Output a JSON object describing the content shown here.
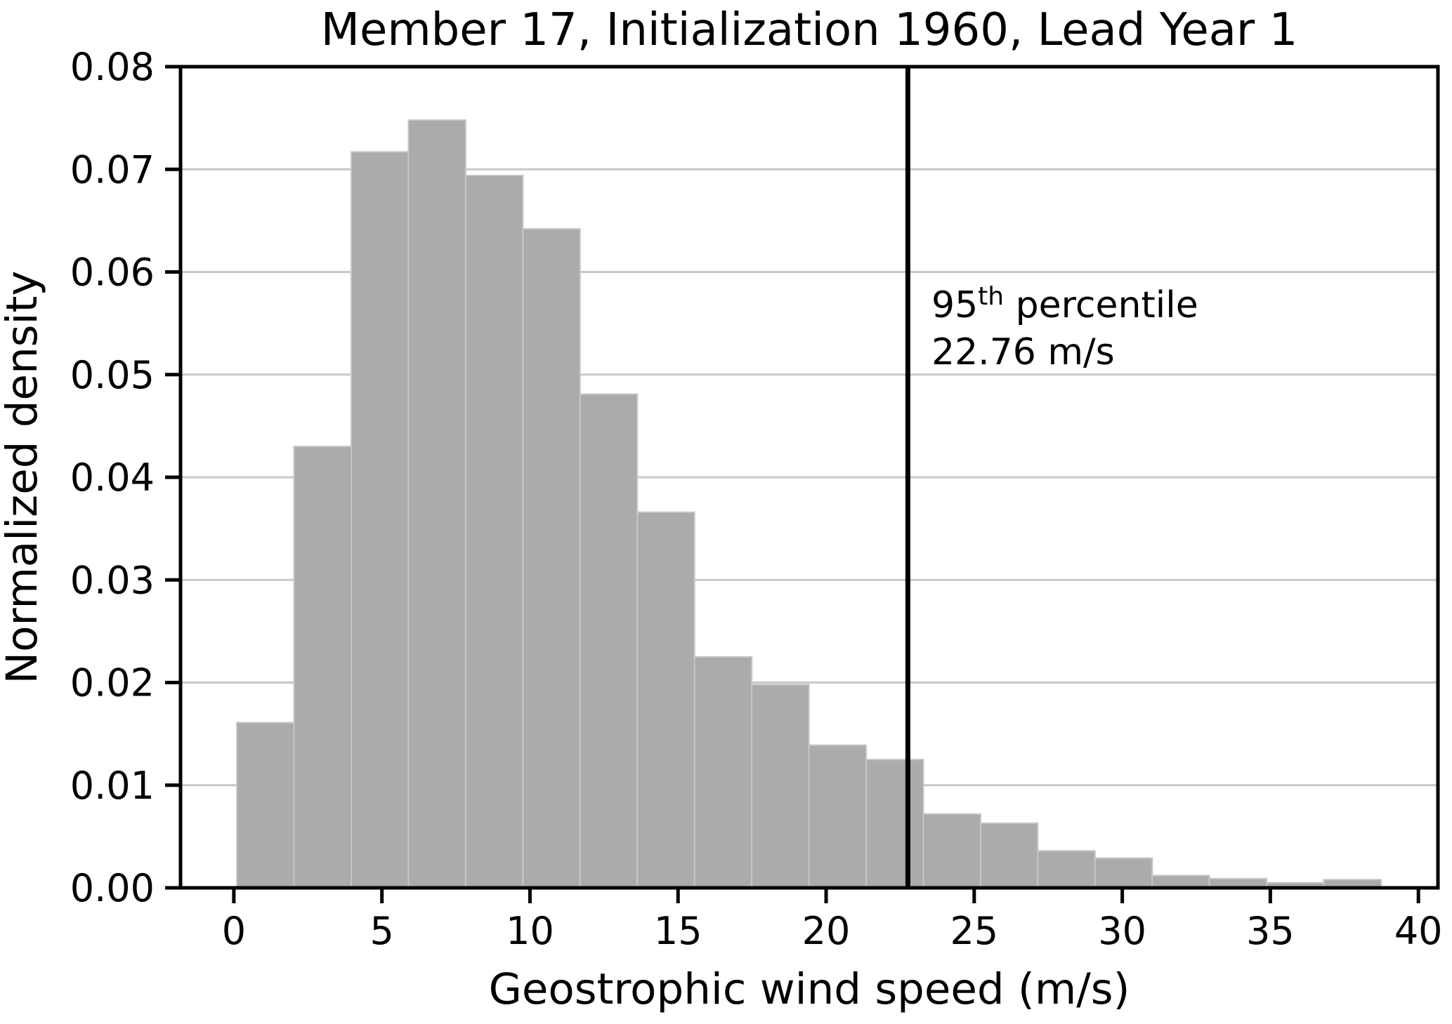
{
  "figure": {
    "title": "Member 17, Initialization 1960, Lead Year 1",
    "background_color": "#ffffff"
  },
  "chart_data": {
    "type": "bar",
    "subtype": "histogram",
    "title": "Member 17, Initialization 1960, Lead Year 1",
    "xlabel": "Geostrophic wind speed (m/s)",
    "ylabel": "Normalized density",
    "xlim": [
      -1.8,
      40.66
    ],
    "ylim": [
      0,
      0.08
    ],
    "grid": "horizontal-on-behind-bars",
    "bin_start": 0.1,
    "bin_width": 1.932,
    "bin_edges": [
      0.1,
      2.03,
      3.96,
      5.9,
      7.83,
      9.76,
      11.69,
      13.62,
      15.56,
      17.49,
      19.42,
      21.35,
      23.28,
      25.22,
      27.15,
      29.08,
      31.01,
      32.94,
      34.88,
      36.81,
      38.74
    ],
    "densities": [
      0.0161,
      0.043,
      0.0717,
      0.0748,
      0.0694,
      0.0642,
      0.0481,
      0.0366,
      0.0225,
      0.0198,
      0.0139,
      0.0125,
      0.0072,
      0.0063,
      0.0036,
      0.0029,
      0.0012,
      0.0009,
      0.0005,
      0.0008
    ],
    "x_ticks": [
      0,
      5,
      10,
      15,
      20,
      25,
      30,
      35,
      40
    ],
    "x_tick_labels": [
      "0",
      "5",
      "10",
      "15",
      "20",
      "25",
      "30",
      "35",
      "40"
    ],
    "y_ticks": [
      0,
      0.01,
      0.02,
      0.03,
      0.04,
      0.05,
      0.06,
      0.07,
      0.08
    ],
    "y_tick_labels": [
      "0.00",
      "0.01",
      "0.02",
      "0.03",
      "0.04",
      "0.05",
      "0.06",
      "0.07",
      "0.08"
    ],
    "bar_color": "#ababab",
    "bar_edge_color": "#c6c6c6",
    "grid_color": "#c8c8c8",
    "spine_color": "#000000",
    "annotation": {
      "value": 22.76,
      "line_color": "#000000",
      "line1_base": "95",
      "line1_sup": "th",
      "line1_rest": " percentile",
      "line2": "22.76 m/s"
    }
  }
}
